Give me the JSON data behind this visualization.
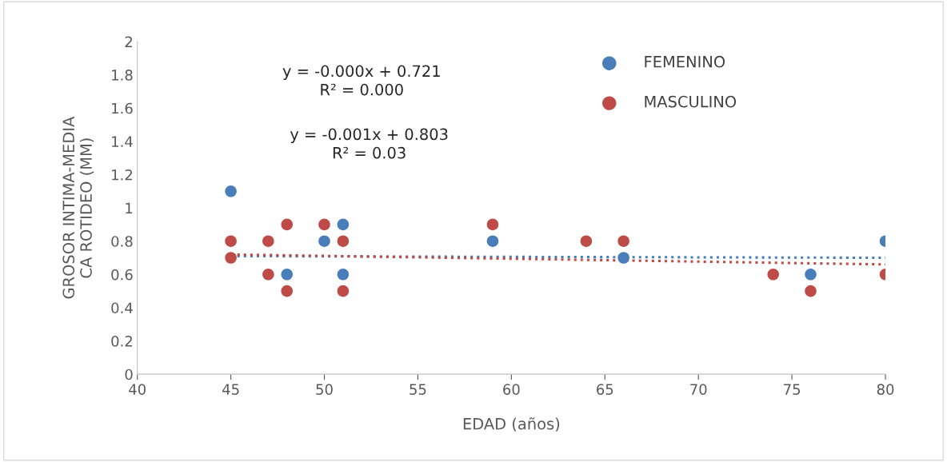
{
  "chart_data": {
    "type": "scatter",
    "xlabel": "EDAD (años)",
    "ylabel": "GROSOR INTIMA-MEDIA\nCA ROTIDEO (MM)",
    "xlim": [
      40,
      80
    ],
    "xticks": [
      40,
      45,
      50,
      55,
      60,
      65,
      70,
      75,
      80
    ],
    "ylim": [
      0,
      2
    ],
    "yticks": [
      0,
      0.2,
      0.4,
      0.6,
      0.8,
      1,
      1.2,
      1.4,
      1.6,
      1.8,
      2
    ],
    "grid": false,
    "legend": "top right",
    "marker": "circle",
    "annotations": [
      "y = -0.000x + 0.721\nR² = 0.000",
      "y = -0.001x + 0.803\nR² = 0.03"
    ],
    "series": [
      {
        "name": "FEMENINO",
        "color": "#4a7ebb",
        "x": [
          45,
          48,
          50,
          51,
          51,
          59,
          66,
          76,
          80
        ],
        "values": [
          1.1,
          0.6,
          0.8,
          0.9,
          0.6,
          0.8,
          0.7,
          0.6,
          0.8
        ]
      },
      {
        "name": "MASCULINO",
        "color": "#be4b48",
        "x": [
          45,
          45,
          47,
          47,
          48,
          48,
          50,
          51,
          51,
          59,
          64,
          66,
          74,
          76,
          80
        ],
        "values": [
          0.8,
          0.7,
          0.8,
          0.6,
          0.9,
          0.5,
          0.9,
          0.8,
          0.5,
          0.9,
          0.8,
          0.8,
          0.6,
          0.5,
          0.6
        ]
      },
      {
        "type": "line",
        "line_style": "dotted",
        "marker": "none",
        "color": "#4a7ebb",
        "x": [
          45,
          80
        ],
        "values": [
          0.71,
          0.7
        ]
      },
      {
        "type": "line",
        "line_style": "dotted",
        "marker": "none",
        "color": "#be4b48",
        "x": [
          45,
          80
        ],
        "values": [
          0.72,
          0.66
        ]
      }
    ]
  }
}
